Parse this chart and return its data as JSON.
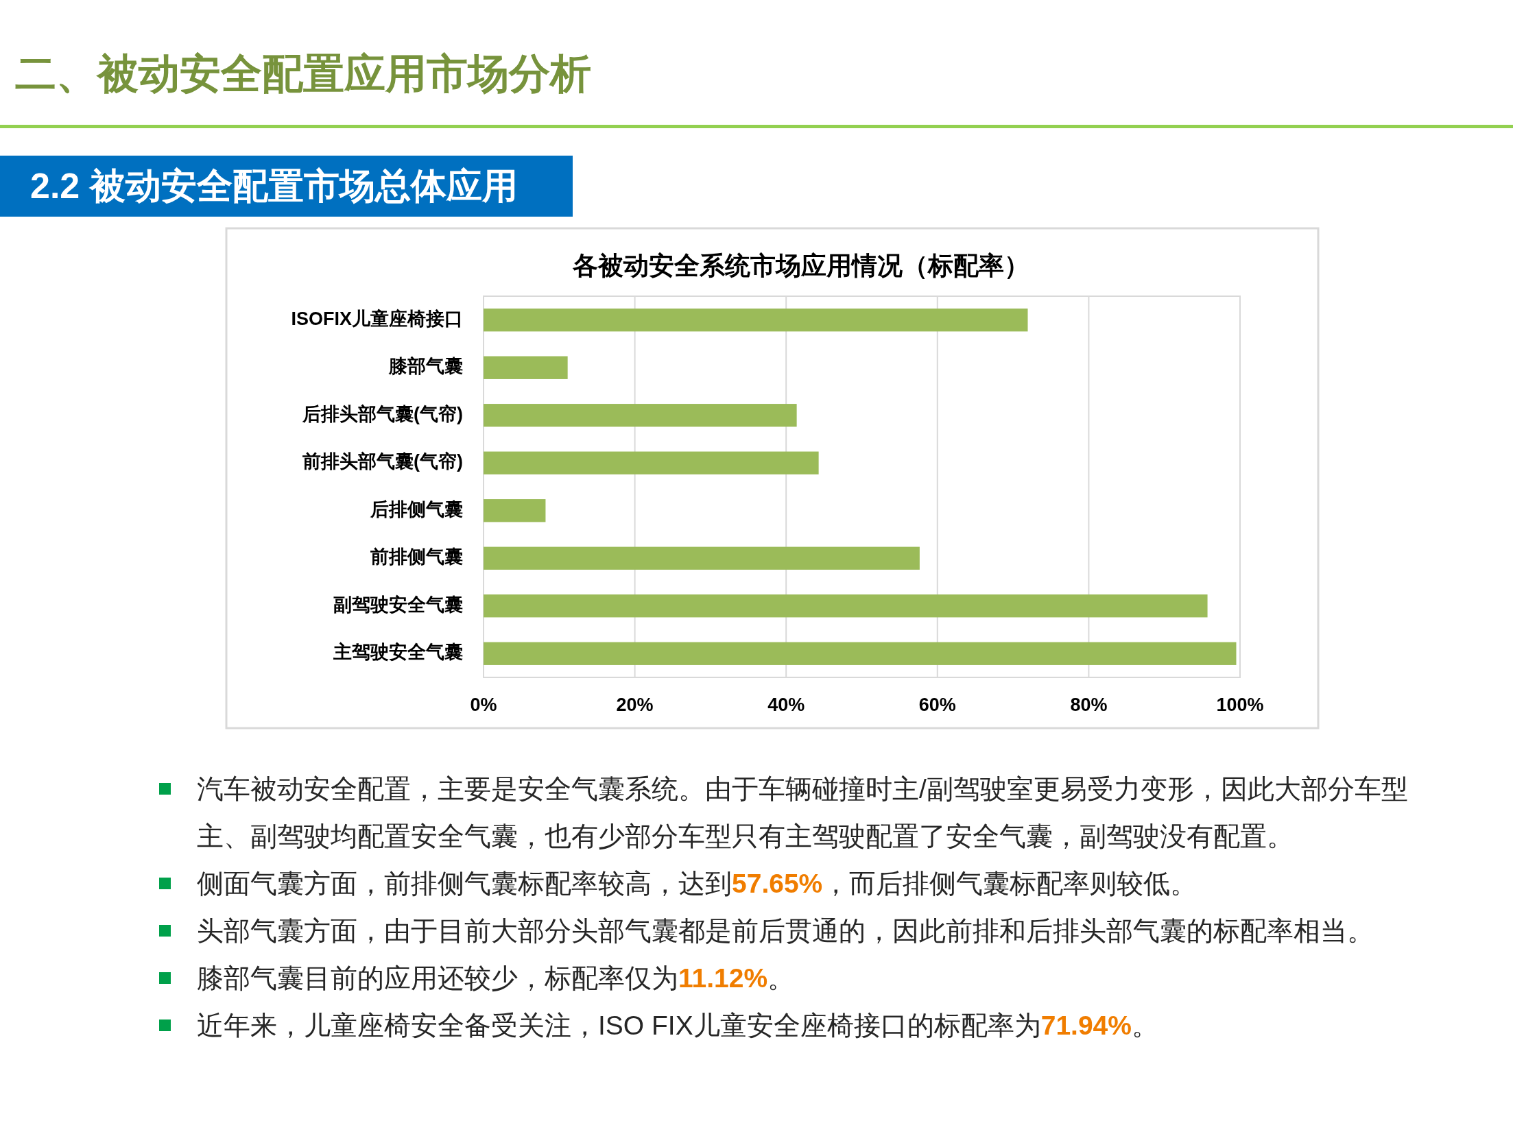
{
  "chart_data": {
    "type": "bar",
    "orientation": "horizontal",
    "title": "各被动安全系统市场应用情况（标配率）",
    "categories": [
      "ISOFIX儿童座椅接口",
      "膝部气囊",
      "后排头部气囊(气帘)",
      "前排头部气囊(气帘)",
      "后排侧气囊",
      "前排侧气囊",
      "副驾驶安全气囊",
      "主驾驶安全气囊"
    ],
    "values": [
      71.94,
      11.12,
      41.4,
      44.3,
      8.2,
      57.65,
      95.7,
      99.5
    ],
    "color": "#9bbb59",
    "xlim": [
      0,
      100
    ],
    "xticks": [
      {
        "value": 0,
        "label": "0%"
      },
      {
        "value": 20,
        "label": "20%"
      },
      {
        "value": 40,
        "label": "40%"
      },
      {
        "value": 60,
        "label": "60%"
      },
      {
        "value": 80,
        "label": "80%"
      },
      {
        "value": 100,
        "label": "100%"
      }
    ],
    "grid": "x",
    "annotations": [
      "二、被动安全配置应用市场分析",
      "2.2 被动安全配置市场总体应用",
      "汽车被动安全配置，主要是安全气囊系统。由于车辆碰撞时主/副驾驶室更易受力变形，因此大部分车型主、副驾驶均配置安全气囊，也有少部分车型只有主驾驶配置了安全气囊，副驾驶没有配置。",
      "侧面气囊方面，前排侧气囊标配率较高，达到**57.65%**，而后排侧气囊标配率则较低。",
      "头部气囊方面，由于目前大部分头部气囊都是前后贯通的，因此前排和后排头部气囊的标配率相当。",
      "膝部气囊目前的应用还较少，标配率仅为**11.12%**。",
      "近年来，儿童座椅安全备受关注，ISO FIX儿童安全座椅接口的标配率为**71.94%**。"
    ]
  }
}
